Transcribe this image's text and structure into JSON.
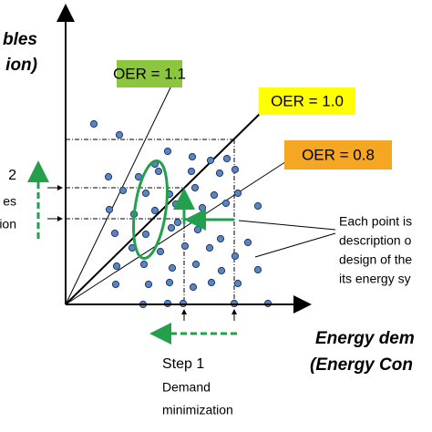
{
  "axis": {
    "y_label": [
      "bles",
      "ion)"
    ],
    "x_label": [
      "Energy dem",
      "(Energy Con"
    ]
  },
  "oer_labels": [
    "OER = 1.1",
    "OER = 1.0",
    "OER = 0.8"
  ],
  "step2": [
    "2",
    "es",
    "ion"
  ],
  "note": [
    "Each point is",
    "description o",
    "design of the",
    "its energy sy"
  ],
  "step1": [
    "Step 1",
    "Demand",
    "minimization"
  ]
}
